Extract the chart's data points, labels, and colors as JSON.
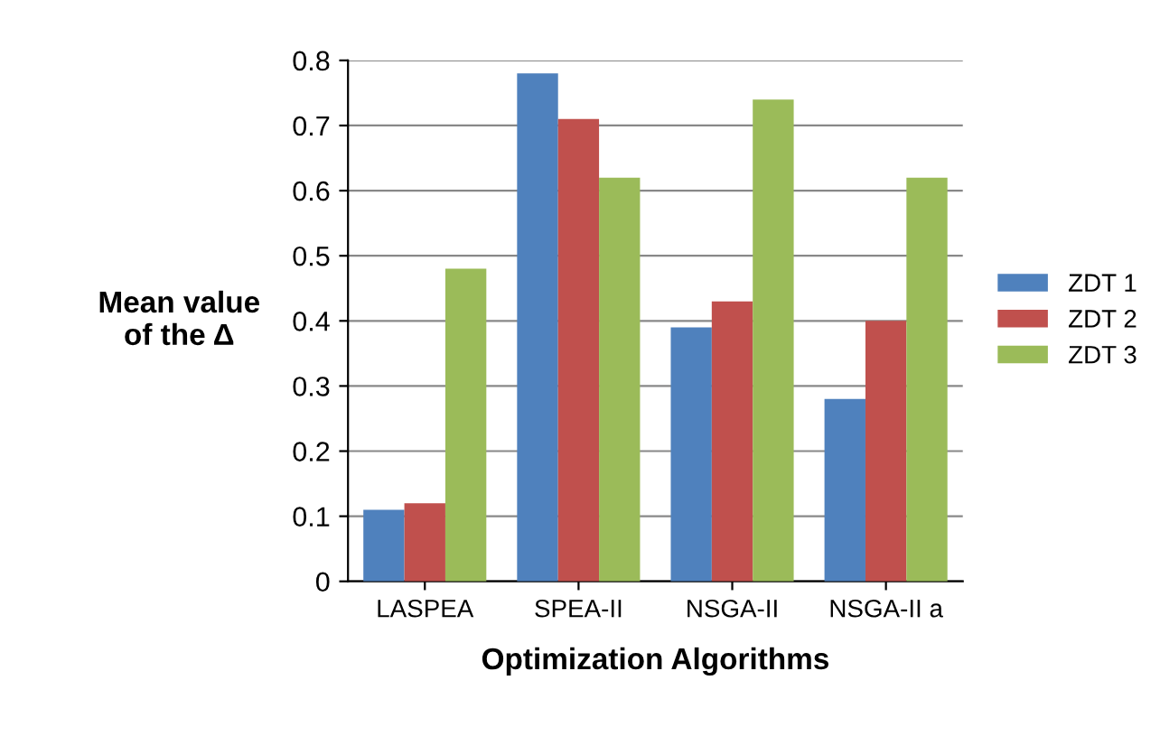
{
  "chart_data": {
    "type": "bar",
    "xlabel": "Optimization Algorithms",
    "ylabel": "Mean value\nof the Δ",
    "categories": [
      "LASPEA",
      "SPEA-II",
      "NSGA-II",
      "NSGA-II a"
    ],
    "series": [
      {
        "name": "ZDT 1",
        "color": "#4f81bd",
        "values": [
          0.11,
          0.78,
          0.39,
          0.28
        ]
      },
      {
        "name": "ZDT 2",
        "color": "#c0504d",
        "values": [
          0.12,
          0.71,
          0.43,
          0.4
        ]
      },
      {
        "name": "ZDT 3",
        "color": "#9bbb59",
        "values": [
          0.48,
          0.62,
          0.74,
          0.62
        ]
      }
    ],
    "ylim": [
      0,
      0.8
    ],
    "yticks": [
      0,
      0.1,
      0.2,
      0.3,
      0.4,
      0.5,
      0.6,
      0.7,
      0.8
    ],
    "grid": "y",
    "legend": "right"
  }
}
